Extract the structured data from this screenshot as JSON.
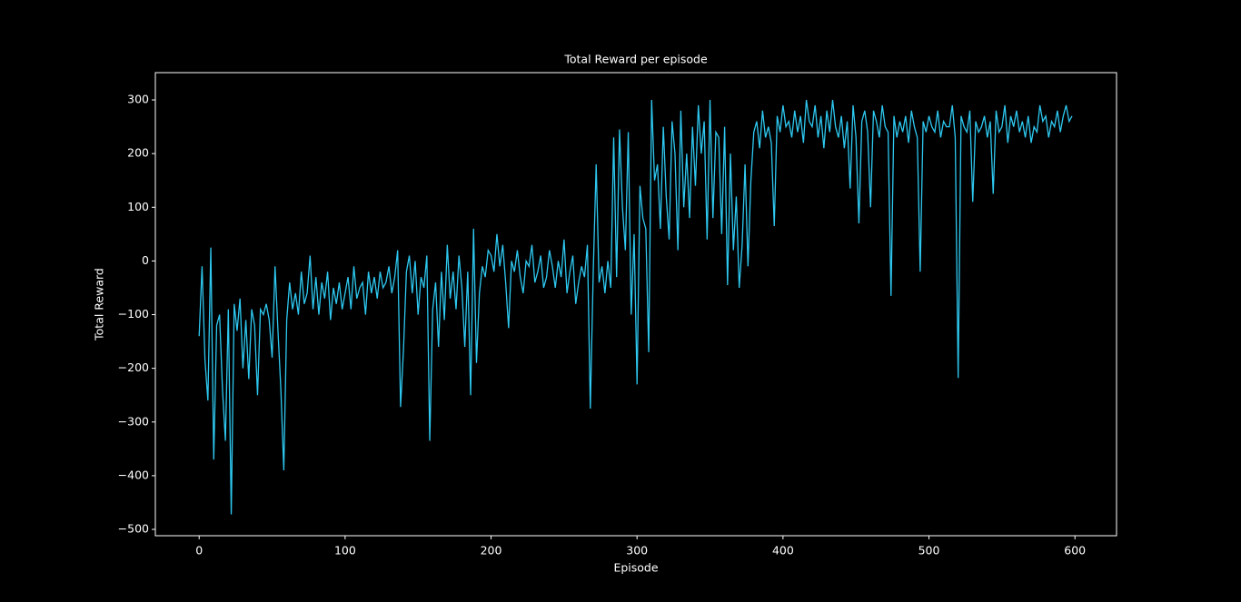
{
  "chart_data": {
    "type": "line",
    "title": "Total Reward per episode",
    "xlabel": "Episode",
    "ylabel": "Total Reward",
    "color": "#2ec8f0",
    "xlim": [
      -30,
      628.5
    ],
    "ylim": [
      -511.8,
      350.8
    ],
    "xticks": [
      0,
      100,
      200,
      300,
      400,
      500,
      600
    ],
    "yticks": [
      {
        "value": -500,
        "label": "−500"
      },
      {
        "value": -400,
        "label": "−400"
      },
      {
        "value": -300,
        "label": "−300"
      },
      {
        "value": -200,
        "label": "−200"
      },
      {
        "value": -100,
        "label": "−100"
      },
      0,
      100,
      200,
      300
    ],
    "x": [
      0,
      2,
      4,
      6,
      8,
      10,
      12,
      14,
      16,
      18,
      20,
      22,
      24,
      26,
      28,
      30,
      32,
      34,
      36,
      38,
      40,
      42,
      44,
      46,
      48,
      50,
      52,
      54,
      56,
      58,
      60,
      62,
      64,
      66,
      68,
      70,
      72,
      74,
      76,
      78,
      80,
      82,
      84,
      86,
      88,
      90,
      92,
      94,
      96,
      98,
      100,
      102,
      104,
      106,
      108,
      110,
      112,
      114,
      116,
      118,
      120,
      122,
      124,
      126,
      128,
      130,
      132,
      134,
      136,
      138,
      140,
      142,
      144,
      146,
      148,
      150,
      152,
      154,
      156,
      158,
      160,
      162,
      164,
      166,
      168,
      170,
      172,
      174,
      176,
      178,
      180,
      182,
      184,
      186,
      188,
      190,
      192,
      194,
      196,
      198,
      200,
      202,
      204,
      206,
      208,
      210,
      212,
      214,
      216,
      218,
      220,
      222,
      224,
      226,
      228,
      230,
      232,
      234,
      236,
      238,
      240,
      242,
      244,
      246,
      248,
      250,
      252,
      254,
      256,
      258,
      260,
      262,
      264,
      266,
      268,
      270,
      272,
      274,
      276,
      278,
      280,
      282,
      284,
      286,
      288,
      290,
      292,
      294,
      296,
      298,
      300,
      302,
      304,
      306,
      308,
      310,
      312,
      314,
      316,
      318,
      320,
      322,
      324,
      326,
      328,
      330,
      332,
      334,
      336,
      338,
      340,
      342,
      344,
      346,
      348,
      350,
      352,
      354,
      356,
      358,
      360,
      362,
      364,
      366,
      368,
      370,
      372,
      374,
      376,
      378,
      380,
      382,
      384,
      386,
      388,
      390,
      392,
      394,
      396,
      398,
      400,
      402,
      404,
      406,
      408,
      410,
      412,
      414,
      416,
      418,
      420,
      422,
      424,
      426,
      428,
      430,
      432,
      434,
      436,
      438,
      440,
      442,
      444,
      446,
      448,
      450,
      452,
      454,
      456,
      458,
      460,
      462,
      464,
      466,
      468,
      470,
      472,
      474,
      476,
      478,
      480,
      482,
      484,
      486,
      488,
      490,
      492,
      494,
      496,
      498,
      500,
      502,
      504,
      506,
      508,
      510,
      512,
      514,
      516,
      518,
      520,
      522,
      524,
      526,
      528,
      530,
      532,
      534,
      536,
      538,
      540,
      542,
      544,
      546,
      548,
      550,
      552,
      554,
      556,
      558,
      560,
      562,
      564,
      566,
      568,
      570,
      572,
      574,
      576,
      578,
      580,
      582,
      584,
      586,
      588,
      590,
      592,
      594,
      596,
      598
    ],
    "values": [
      -140,
      -10,
      -185,
      -260,
      25,
      -370,
      -120,
      -100,
      -240,
      -335,
      -90,
      -472,
      -80,
      -130,
      -70,
      -200,
      -110,
      -220,
      -90,
      -120,
      -250,
      -90,
      -100,
      -80,
      -110,
      -180,
      -10,
      -130,
      -240,
      -390,
      -110,
      -40,
      -90,
      -60,
      -100,
      -20,
      -80,
      -60,
      10,
      -90,
      -30,
      -100,
      -40,
      -70,
      -20,
      -110,
      -50,
      -80,
      -40,
      -90,
      -60,
      -30,
      -90,
      -10,
      -70,
      -50,
      -40,
      -100,
      -20,
      -60,
      -30,
      -70,
      -20,
      -50,
      -40,
      -10,
      -60,
      -30,
      20,
      -272,
      -165,
      -20,
      10,
      -60,
      0,
      -100,
      -30,
      -50,
      10,
      -335,
      -90,
      -40,
      -160,
      -20,
      -110,
      30,
      -70,
      -20,
      -90,
      10,
      -50,
      -160,
      -20,
      -250,
      60,
      -190,
      -60,
      -10,
      -30,
      20,
      10,
      -20,
      50,
      -10,
      30,
      -40,
      -125,
      0,
      -20,
      20,
      -30,
      -60,
      0,
      -10,
      30,
      -40,
      -20,
      10,
      -50,
      -30,
      20,
      -10,
      -50,
      0,
      -30,
      40,
      -60,
      -20,
      10,
      -80,
      -40,
      -10,
      -30,
      30,
      -275,
      -20,
      180,
      -40,
      -10,
      -60,
      0,
      -50,
      230,
      -30,
      245,
      100,
      20,
      240,
      -100,
      50,
      -230,
      140,
      80,
      60,
      -170,
      300,
      150,
      180,
      60,
      250,
      120,
      40,
      260,
      200,
      20,
      280,
      100,
      200,
      80,
      250,
      140,
      290,
      200,
      260,
      40,
      300,
      80,
      240,
      230,
      50,
      250,
      -45,
      200,
      20,
      120,
      -50,
      30,
      180,
      -10,
      150,
      240,
      260,
      210,
      280,
      230,
      250,
      220,
      65,
      270,
      240,
      290,
      250,
      260,
      230,
      280,
      240,
      270,
      220,
      300,
      260,
      250,
      290,
      230,
      270,
      210,
      280,
      240,
      300,
      250,
      230,
      270,
      210,
      260,
      135,
      290,
      230,
      70,
      260,
      280,
      240,
      100,
      280,
      260,
      230,
      290,
      250,
      240,
      -65,
      270,
      230,
      260,
      240,
      270,
      220,
      280,
      250,
      230,
      -20,
      260,
      240,
      270,
      250,
      240,
      280,
      230,
      260,
      250,
      250,
      290,
      230,
      -218,
      270,
      250,
      240,
      280,
      110,
      260,
      240,
      250,
      270,
      230,
      260,
      125,
      280,
      240,
      250,
      290,
      220,
      270,
      250,
      280,
      240,
      260,
      230,
      270,
      220,
      250,
      240,
      290,
      260,
      270,
      230,
      260,
      250,
      280,
      240,
      270,
      290,
      260,
      270
    ]
  }
}
